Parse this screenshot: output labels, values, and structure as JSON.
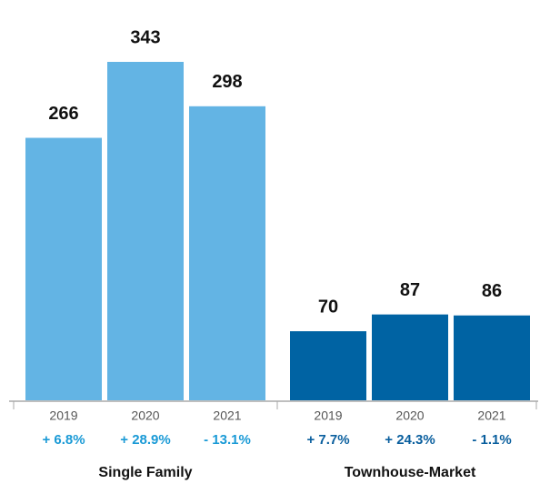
{
  "chart_data": {
    "type": "bar",
    "groups": [
      {
        "name": "Single Family",
        "color": "#63b4e4",
        "change_color": "#1a9ad6",
        "categories": [
          "2019",
          "2020",
          "2021"
        ],
        "values": [
          266,
          343,
          298
        ],
        "change_labels": [
          "+ 6.8%",
          "+ 28.9%",
          "- 13.1%"
        ]
      },
      {
        "name": "Townhouse-Market",
        "color": "#0063a3",
        "change_color": "#0a5f9e",
        "categories": [
          "2019",
          "2020",
          "2021"
        ],
        "values": [
          70,
          87,
          86
        ],
        "change_labels": [
          "+ 7.7%",
          "+ 24.3%",
          "- 1.1%"
        ]
      }
    ]
  }
}
